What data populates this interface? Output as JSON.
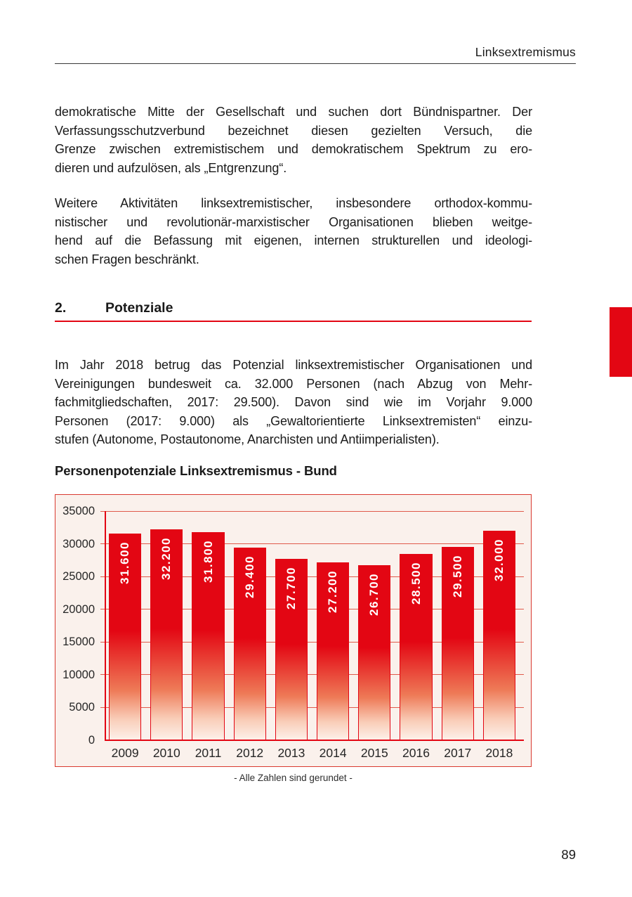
{
  "header": {
    "title": "Linksextremismus"
  },
  "paragraph1": {
    "lines": [
      "demokratische Mitte der Gesellschaft und suchen dort Bündnispartner. Der",
      "Verfassungsschutzverbund bezeichnet diesen gezielten Versuch, die",
      "Grenze zwischen extremistischem und demokratischem Spektrum zu ero-",
      "dieren und aufzulösen, als „Entgrenzung“."
    ]
  },
  "paragraph2": {
    "lines": [
      "Weitere Aktivitäten linksextremistischer, insbesondere orthodox-kommu-",
      "nistischer und revolutionär-marxistischer Organisationen blieben weitge-",
      "hend auf die Befassung mit eigenen, internen strukturellen und ideologi-",
      "schen Fragen beschränkt."
    ]
  },
  "section": {
    "number": "2.",
    "title": "Potenziale"
  },
  "paragraph3": {
    "lines": [
      "Im Jahr 2018 betrug das Potenzial linksextremistischer Organisationen und",
      "Vereinigungen bundesweit ca. 32.000 Personen (nach Abzug von Mehr-",
      "fachmitgliedschaften, 2017: 29.500). Davon sind wie im Vorjahr 9.000",
      "Personen (2017: 9.000) als „Gewaltorientierte Linksextremisten“ einzu-",
      "stufen (Autonome, Postautonome, Anarchisten und Antiimperialisten)."
    ]
  },
  "chart_title": "Personenpotenziale Linksextremismus - Bund",
  "chart_data": {
    "type": "bar",
    "title": "Personenpotenziale Linksextremismus - Bund",
    "categories": [
      "2009",
      "2010",
      "2011",
      "2012",
      "2013",
      "2014",
      "2015",
      "2016",
      "2017",
      "2018"
    ],
    "values": [
      31600,
      32200,
      31800,
      29400,
      27700,
      27200,
      26700,
      28500,
      29500,
      32000
    ],
    "bar_labels": [
      "31.600",
      "32.200",
      "31.800",
      "29.400",
      "27.700",
      "27.200",
      "26.700",
      "28.500",
      "29.500",
      "32.000"
    ],
    "ylim": [
      0,
      35000
    ],
    "yticks": [
      0,
      5000,
      10000,
      15000,
      20000,
      25000,
      30000,
      35000
    ],
    "grid": "horizontal",
    "legend": "none",
    "footnote": "- Alle Zahlen sind gerundet -",
    "colors": {
      "bar": "#e30613",
      "bar_gradient_bottom": "#fdf0e9",
      "gridline": "#e05a4b",
      "axis": "#e30613",
      "plot_background": "#faf1ec",
      "bar_value_text": "#ffffff"
    }
  },
  "caption": "- Alle Zahlen sind gerundet -",
  "side_tab_color": "#e30613",
  "page_number": "89"
}
